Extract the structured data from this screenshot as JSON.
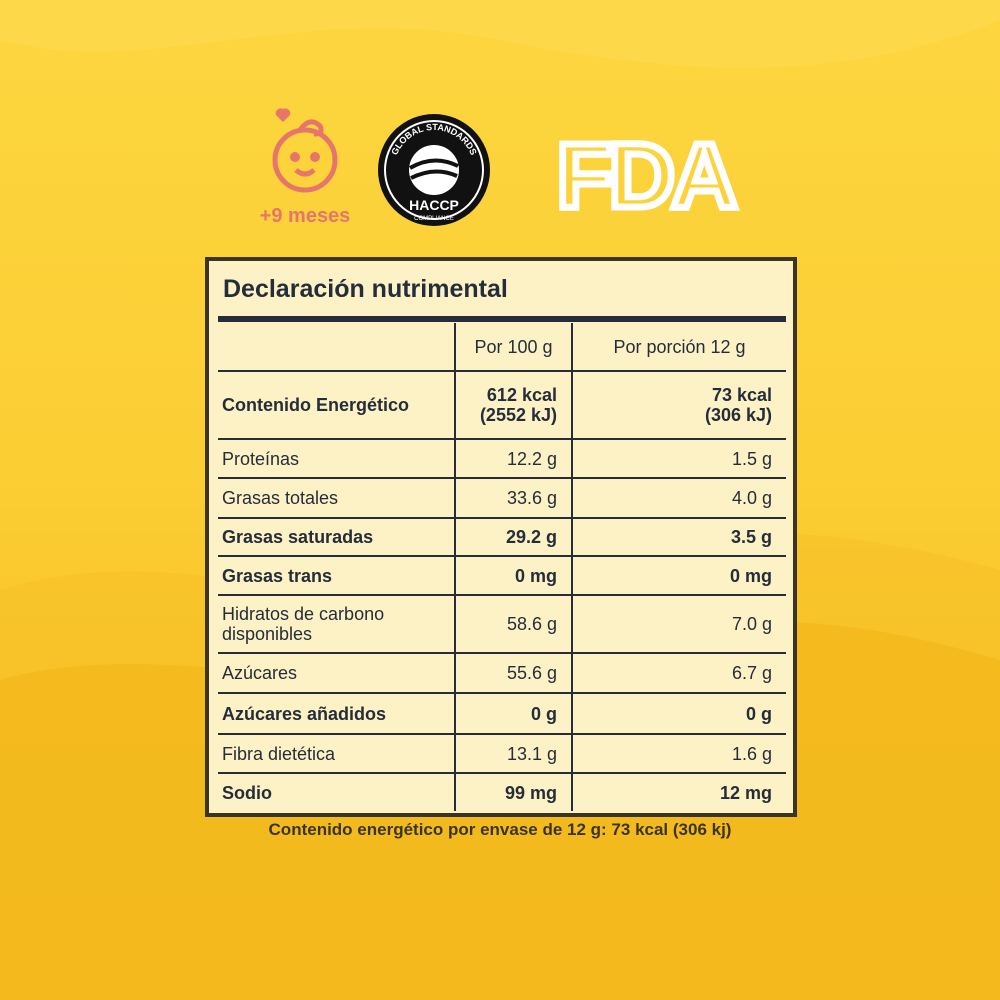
{
  "badges": {
    "age": "+9 meses",
    "haccp": {
      "top": "GLOBAL STANDARDS",
      "main": "HACCP",
      "bottom": "COMPLIANCE"
    },
    "fda": "FDA"
  },
  "table": {
    "title": "Declaración nutrimental",
    "headers": [
      "Por 100 g",
      "Por porción 12 g"
    ],
    "rows": [
      {
        "label": "Contenido Energético",
        "per100": "612 kcal (2552 kJ)",
        "perPortion": "73 kcal (306 kJ)",
        "bold": true
      },
      {
        "label": "Proteínas",
        "per100": "12.2 g",
        "perPortion": "1.5 g",
        "bold": false
      },
      {
        "label": "Grasas totales",
        "per100": "33.6 g",
        "perPortion": "4.0 g",
        "bold": false
      },
      {
        "label": "Grasas saturadas",
        "per100": "29.2 g",
        "perPortion": "3.5 g",
        "bold": true
      },
      {
        "label": "Grasas trans",
        "per100": "0 mg",
        "perPortion": "0 mg",
        "bold": true
      },
      {
        "label": "Hidratos de carbono disponibles",
        "per100": "58.6 g",
        "perPortion": "7.0 g",
        "bold": false
      },
      {
        "label": "Azúcares",
        "per100": "55.6 g",
        "perPortion": "6.7 g",
        "bold": false
      },
      {
        "label": "Azúcares añadidos",
        "per100": "0 g",
        "perPortion": "0 g",
        "bold": true
      },
      {
        "label": "Fibra dietética",
        "per100": "13.1 g",
        "perPortion": "1.6 g",
        "bold": false
      },
      {
        "label": "Sodio",
        "per100": "99 mg",
        "perPortion": "12 mg",
        "bold": true
      }
    ],
    "footer": "Contenido energético por envase de 12 g: 73 kcal (306 kj)"
  }
}
